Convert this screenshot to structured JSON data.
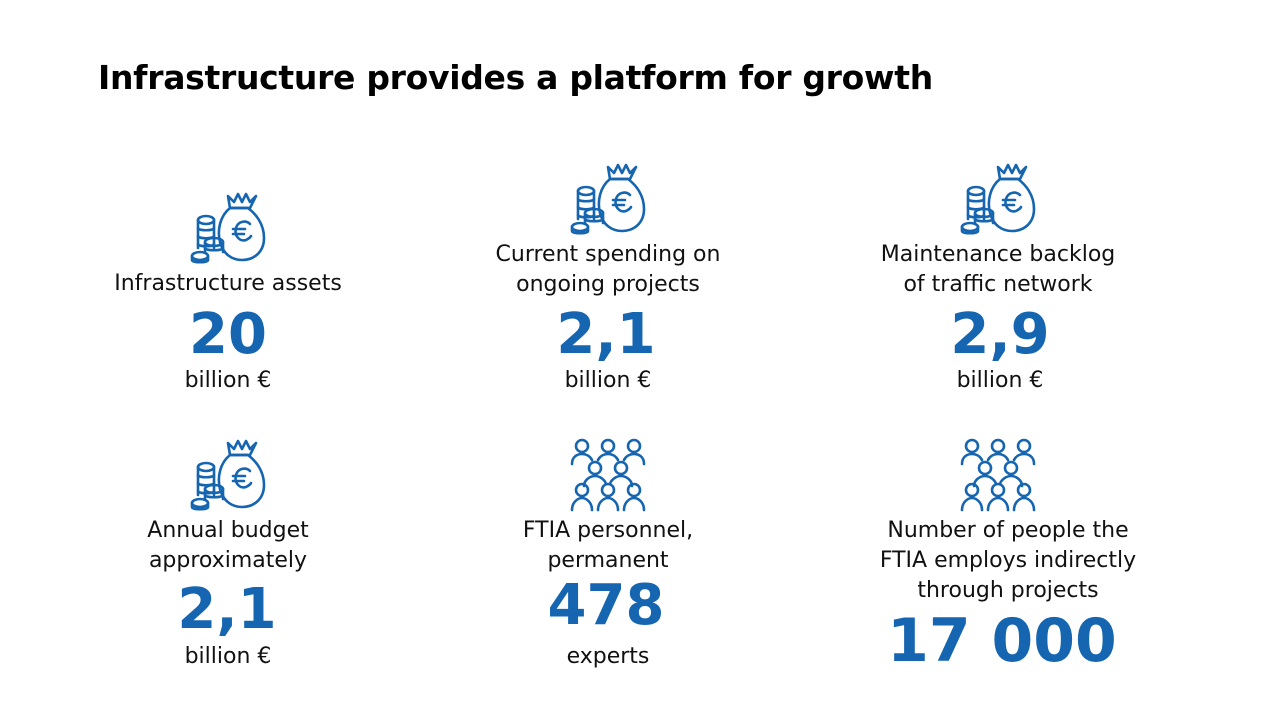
{
  "title": "Infrastructure provides a platform for growth",
  "accent_color": "#1565b0",
  "stats": [
    {
      "icon": "money-bag-coins-icon",
      "label": "Infrastructure assets",
      "value": "20",
      "unit": "billion €"
    },
    {
      "icon": "money-bag-coins-icon",
      "label": "Current spending on\nongoing projects",
      "value": "2,1",
      "unit": "billion €"
    },
    {
      "icon": "money-bag-coins-icon",
      "label": "Maintenance backlog\nof traffic network",
      "value": "2,9",
      "unit": "billion €"
    },
    {
      "icon": "money-bag-coins-icon",
      "label": "Annual budget\napproximately",
      "value": "2,1",
      "unit": "billion €"
    },
    {
      "icon": "group-of-people-icon",
      "label": "FTIA personnel,\npermanent",
      "value": "478",
      "unit": "experts"
    },
    {
      "icon": "group-of-people-icon",
      "label": "Number of people the\nFTIA employs indirectly\nthrough projects",
      "value": "17 000",
      "unit": ""
    }
  ]
}
